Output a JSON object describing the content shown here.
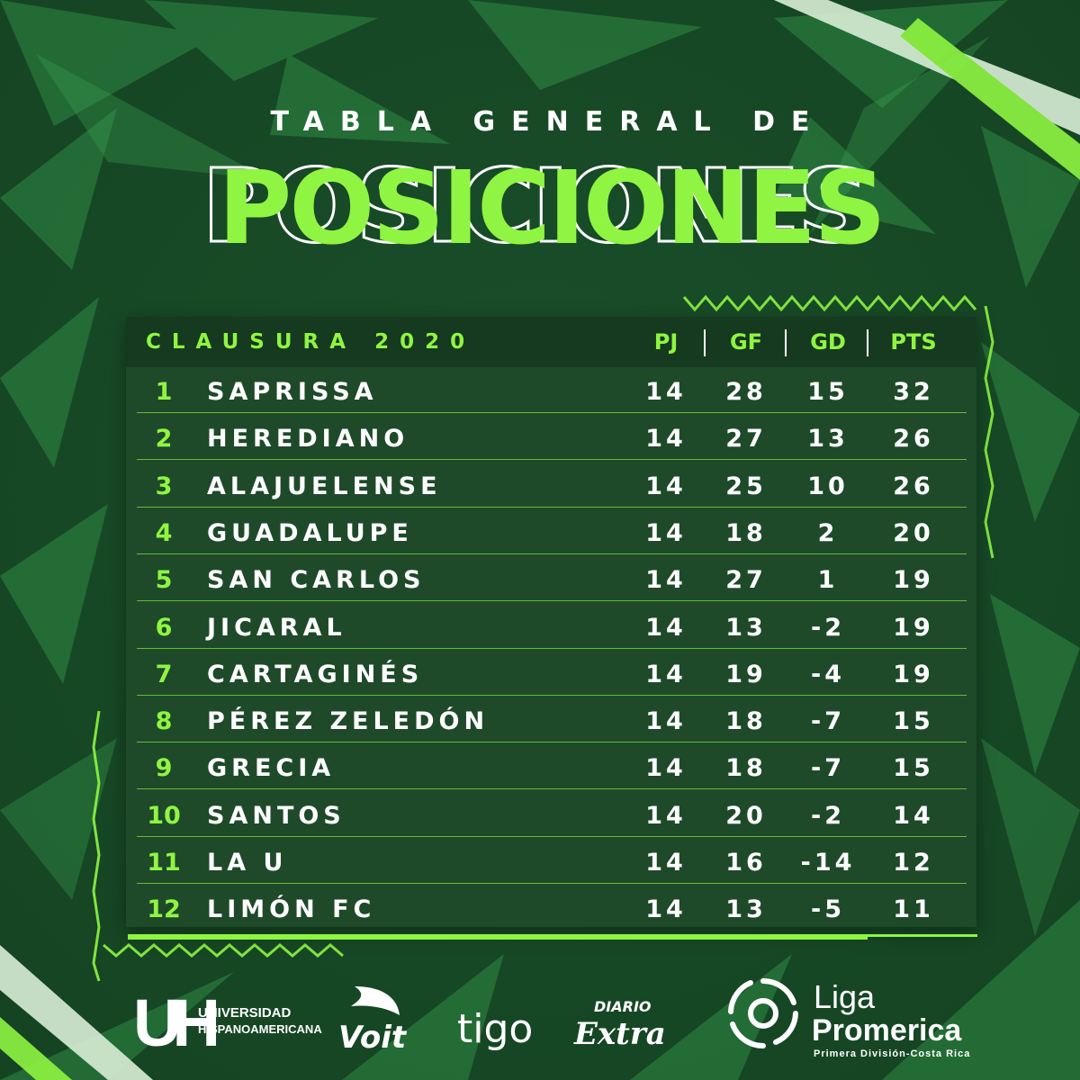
{
  "heading": {
    "line1": "TABLA GENERAL DE",
    "line2": "POSICIONES"
  },
  "table": {
    "season": "CLAUSURA 2020",
    "columns": [
      "PJ",
      "GF",
      "GD",
      "PTS"
    ],
    "rows": [
      {
        "pos": "1",
        "team": "SAPRISSA",
        "pj": "14",
        "gf": "28",
        "gd": "15",
        "pts": "32"
      },
      {
        "pos": "2",
        "team": "HEREDIANO",
        "pj": "14",
        "gf": "27",
        "gd": "13",
        "pts": "26"
      },
      {
        "pos": "3",
        "team": "ALAJUELENSE",
        "pj": "14",
        "gf": "25",
        "gd": "10",
        "pts": "26"
      },
      {
        "pos": "4",
        "team": "GUADALUPE",
        "pj": "14",
        "gf": "18",
        "gd": "2",
        "pts": "20"
      },
      {
        "pos": "5",
        "team": "SAN CARLOS",
        "pj": "14",
        "gf": "27",
        "gd": "1",
        "pts": "19"
      },
      {
        "pos": "6",
        "team": "JICARAL",
        "pj": "14",
        "gf": "13",
        "gd": "-2",
        "pts": "19"
      },
      {
        "pos": "7",
        "team": "CARTAGINÉS",
        "pj": "14",
        "gf": "19",
        "gd": "-4",
        "pts": "19"
      },
      {
        "pos": "8",
        "team": "PÉREZ ZELEDÓN",
        "pj": "14",
        "gf": "18",
        "gd": "-7",
        "pts": "15"
      },
      {
        "pos": "9",
        "team": "GRECIA",
        "pj": "14",
        "gf": "18",
        "gd": "-7",
        "pts": "15"
      },
      {
        "pos": "10",
        "team": "SANTOS",
        "pj": "14",
        "gf": "20",
        "gd": "-2",
        "pts": "14"
      },
      {
        "pos": "11",
        "team": "LA U",
        "pj": "14",
        "gf": "16",
        "gd": "-14",
        "pts": "12"
      },
      {
        "pos": "12",
        "team": "LIMÓN FC",
        "pj": "14",
        "gf": "13",
        "gd": "-5",
        "pts": "11"
      }
    ]
  },
  "sponsors": {
    "uh_mark": "UH",
    "uh_line1": "UNIVERSIDAD",
    "uh_line2": "HISPANOAMERICANA",
    "voit": "Voit",
    "tigo": "tigo",
    "diario_line1": "DIARIO",
    "diario_line2": "Extra",
    "liga_line1": "Liga",
    "liga_line2": "Promerica",
    "liga_line3": "Primera División-Costa Rica"
  },
  "colors": {
    "accent": "#8ff542",
    "panel": "#1e4a2a",
    "header": "#163a20",
    "background": "#1d5a2e"
  }
}
